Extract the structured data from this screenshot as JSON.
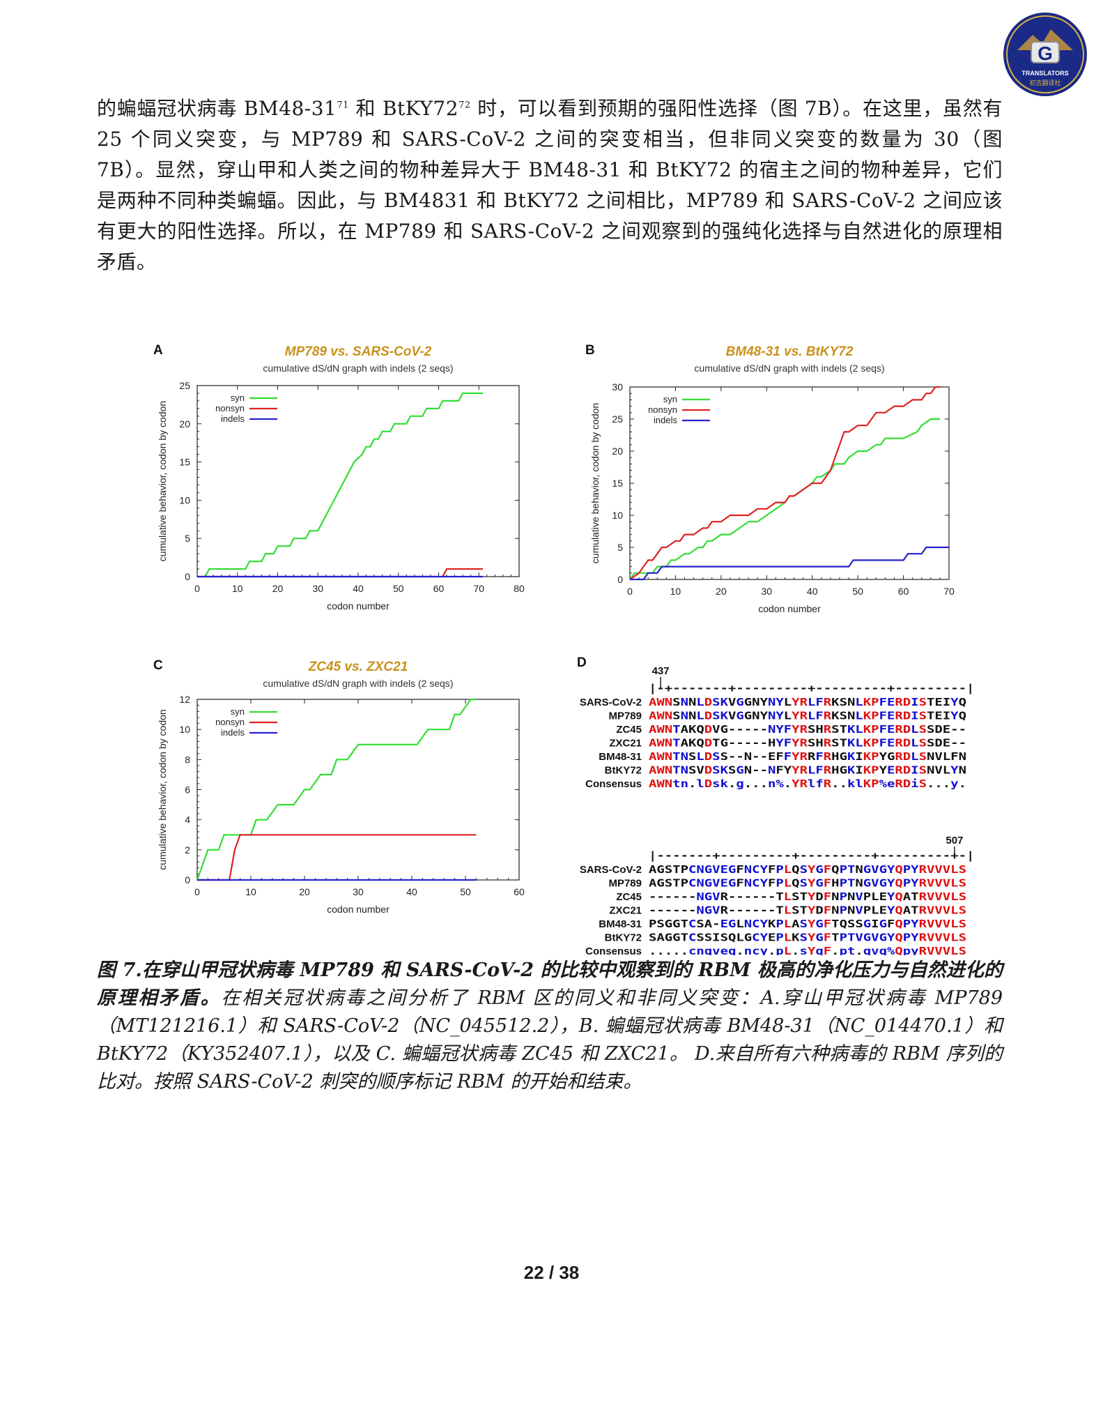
{
  "logo": {
    "letter": "G",
    "text": "TRANSLATORS",
    "subtext": "初吉翻译社"
  },
  "paragraph": {
    "p1": "的蝙蝠冠状病毒 BM48-31",
    "sup1": "71",
    "p2": " 和 BtKY72",
    "sup2": "72",
    "p3": " 时，可以看到预期的强阳性选择（图 7B）。在这里，虽然有 25 个同义突变，与 MP789 和 SARS-CoV-2 之间的突变相当，但非同义突变的数量为 30（图 7B）。显然，穿山甲和人类之间的物种差异大于 BM48-31 和 BtKY72 的宿主之间的物种差异，它们是两种不同种类蝙蝠。因此，与 BM4831 和 BtKY72 之间相比，MP789 和 SARS-CoV-2 之间应该有更大的阳性选择。所以，在 MP789 和 SARS-CoV-2 之间观察到的强纯化选择与自然进化的原理相矛盾。"
  },
  "caption": {
    "bold": "图 7.在穿山甲冠状病毒 MP789 和 SARS-CoV-2 的比较中观察到的 RBM 极高的净化压力与自然进化的原理相矛盾。",
    "rest": "在相关冠状病毒之间分析了 RBM 区的同义和非同义突变：A.穿山甲冠状病毒 MP789（MT121216.1）和 SARS-CoV-2（NC_045512.2），B. 蝙蝠冠状病毒 BM48-31（NC_014470.1）和 BtKY72（KY352407.1），以及 C. 蝙蝠冠状病毒 ZC45 和 ZXC21。 D.来自所有六种病毒的 RBM 序列的比对。按照 SARS-CoV-2 刺突的顺序标记 RBM 的开始和结束。"
  },
  "page_number": "22 / 38",
  "colors": {
    "syn": "#33dd33",
    "nonsyn": "#dd2222",
    "indels": "#2222cc",
    "title": "#c8921c",
    "aln_red": "#e01010",
    "aln_blue": "#1010d0"
  },
  "chart_data": [
    {
      "panel": "A",
      "type": "line",
      "title": "MP789 vs. SARS-CoV-2",
      "subtitle": "cumulative dS/dN graph with indels (2 seqs)",
      "xlabel": "codon number",
      "ylabel": "cumulative behavior, codon by codon",
      "xlim": [
        0,
        80
      ],
      "ylim": [
        0,
        25
      ],
      "xticks": [
        0,
        10,
        20,
        30,
        40,
        50,
        60,
        70,
        80
      ],
      "yticks": [
        0,
        5,
        10,
        15,
        20,
        25
      ],
      "legend": "top-left",
      "series": [
        {
          "name": "syn",
          "color": "#33dd33",
          "x": [
            2,
            3,
            4,
            12,
            13,
            16,
            17,
            19,
            20,
            23,
            24,
            27,
            28,
            30,
            31,
            32,
            33,
            34,
            35,
            36,
            37,
            38,
            39,
            41,
            42,
            43,
            44,
            45,
            46,
            47,
            48,
            49,
            51,
            52,
            53,
            54,
            56,
            57,
            59,
            60,
            61,
            62,
            63,
            65,
            66,
            70,
            71
          ],
          "y": [
            0,
            1,
            1,
            1,
            2,
            2,
            3,
            3,
            4,
            4,
            5,
            5,
            6,
            6,
            7,
            8,
            9,
            10,
            11,
            12,
            13,
            14,
            15,
            16,
            17,
            17,
            18,
            18,
            19,
            19,
            19,
            20,
            20,
            20,
            21,
            21,
            21,
            22,
            22,
            22,
            23,
            23,
            23,
            23,
            24,
            24,
            24
          ]
        },
        {
          "name": "nonsyn",
          "color": "#dd2222",
          "x": [
            0,
            61,
            62,
            71
          ],
          "y": [
            0,
            0,
            1,
            1
          ]
        },
        {
          "name": "indels",
          "color": "#2222cc",
          "x": [
            0,
            71
          ],
          "y": [
            0,
            0
          ]
        }
      ]
    },
    {
      "panel": "B",
      "type": "line",
      "title": "BM48-31 vs. BtKY72",
      "subtitle": "cumulative dS/dN graph with indels (2 seqs)",
      "xlabel": "codon number",
      "ylabel": "cumulative behavior, codon by codon",
      "xlim": [
        0,
        70
      ],
      "ylim": [
        0,
        30
      ],
      "xticks": [
        0,
        10,
        20,
        30,
        40,
        50,
        60,
        70
      ],
      "yticks": [
        0,
        5,
        10,
        15,
        20,
        25,
        30
      ],
      "legend": "top-left",
      "series": [
        {
          "name": "syn",
          "color": "#33dd33",
          "x": [
            0,
            1,
            2,
            5,
            6,
            8,
            9,
            10,
            12,
            13,
            15,
            16,
            17,
            18,
            20,
            22,
            24,
            26,
            28,
            30,
            32,
            34,
            35,
            36,
            38,
            40,
            41,
            42,
            44,
            45,
            47,
            48,
            50,
            52,
            54,
            55,
            56,
            58,
            60,
            63,
            64,
            66,
            67,
            68
          ],
          "y": [
            0,
            1,
            1,
            1,
            2,
            2,
            3,
            3,
            4,
            4,
            5,
            5,
            6,
            6,
            7,
            7,
            8,
            9,
            9,
            10,
            11,
            12,
            13,
            13,
            14,
            15,
            16,
            16,
            17,
            18,
            18,
            19,
            20,
            20,
            21,
            21,
            22,
            22,
            22,
            23,
            24,
            25,
            25,
            25
          ]
        },
        {
          "name": "nonsyn",
          "color": "#dd2222",
          "x": [
            0,
            2,
            3,
            4,
            5,
            6,
            7,
            8,
            10,
            11,
            12,
            14,
            16,
            17,
            18,
            20,
            22,
            24,
            26,
            28,
            30,
            32,
            34,
            35,
            36,
            38,
            40,
            42,
            44,
            45,
            46,
            47,
            48,
            50,
            52,
            54,
            55,
            56,
            58,
            60,
            62,
            64,
            65,
            66,
            67,
            68
          ],
          "y": [
            0,
            1,
            2,
            3,
            3,
            4,
            5,
            5,
            6,
            6,
            7,
            7,
            8,
            8,
            9,
            9,
            10,
            10,
            10,
            11,
            11,
            12,
            12,
            13,
            13,
            14,
            15,
            15,
            17,
            19,
            21,
            23,
            23,
            24,
            24,
            26,
            26,
            26,
            27,
            27,
            28,
            28,
            29,
            29,
            30,
            30
          ]
        },
        {
          "name": "indels",
          "color": "#2222cc",
          "x": [
            0,
            3,
            4,
            5,
            6,
            7,
            8,
            9,
            48,
            49,
            60,
            61,
            64,
            65,
            70
          ],
          "y": [
            0,
            0,
            1,
            1,
            1,
            2,
            2,
            2,
            2,
            3,
            3,
            4,
            4,
            5,
            5
          ]
        }
      ]
    },
    {
      "panel": "C",
      "type": "line",
      "title": "ZC45 vs. ZXC21",
      "subtitle": "cumulative dS/dN graph with indels (2 seqs)",
      "xlabel": "codon number",
      "ylabel": "cumulative behavior, codon by codon",
      "xlim": [
        0,
        60
      ],
      "ylim": [
        0,
        12
      ],
      "xticks": [
        0,
        10,
        20,
        30,
        40,
        50,
        60
      ],
      "yticks": [
        0,
        2,
        4,
        6,
        8,
        10,
        12
      ],
      "legend": "top-left",
      "series": [
        {
          "name": "syn",
          "color": "#33dd33",
          "x": [
            0,
            1,
            2,
            4,
            5,
            6,
            8,
            10,
            11,
            13,
            15,
            16,
            18,
            20,
            21,
            23,
            25,
            26,
            28,
            30,
            35,
            37,
            41,
            43,
            45,
            47,
            48,
            49,
            51,
            52
          ],
          "y": [
            0,
            1,
            2,
            2,
            3,
            3,
            3,
            3,
            4,
            4,
            5,
            5,
            5,
            6,
            6,
            7,
            7,
            8,
            8,
            9,
            9,
            9,
            9,
            10,
            10,
            10,
            11,
            11,
            12,
            12
          ]
        },
        {
          "name": "nonsyn",
          "color": "#dd2222",
          "x": [
            0,
            6,
            7,
            8,
            9,
            52
          ],
          "y": [
            0,
            0,
            2,
            3,
            3,
            3
          ]
        },
        {
          "name": "indels",
          "color": "#2222cc",
          "x": [
            0,
            52
          ],
          "y": [
            0,
            0
          ]
        }
      ]
    }
  ],
  "alignment": {
    "panel": "D",
    "block1": {
      "marker": "437",
      "ruler": "|-+-------+---------+---------+---------|",
      "rows": [
        {
          "name": "SARS-CoV-2",
          "seq": "AWNSNNLDSKVGGNYNYLYRLFRKSNLKPFERDISTEIYQ"
        },
        {
          "name": "MP789",
          "seq": "AWNSNNLDSKVGGNYNYLYRLFRKSNLKPFERDISTEIYQ"
        },
        {
          "name": "ZC45",
          "seq": "AWNTAKQDVG-----NYFYRSHRSTKLKPFERDLSSDE--"
        },
        {
          "name": "ZXC21",
          "seq": "AWNTAKQDTG-----HYFYRSHRSTKLKPFERDLSSDE--"
        },
        {
          "name": "BM48-31",
          "seq": "AWNTNSLDSS--N--EFFYRRFRHGKIKPYGRDLSNVLFN"
        },
        {
          "name": "BtKY72",
          "seq": "AWNTNSVDSKSGN--NFYYRLFRHGKIKPYERDISNVLYN"
        },
        {
          "name": "Consensus",
          "seq": "AWNtn.lDsk.g...n%.YRlfR..klKP%eRDiS...y."
        }
      ]
    },
    "block2": {
      "marker": "507",
      "ruler": "|-------+---------+---------+---------+-|",
      "rows": [
        {
          "name": "SARS-CoV-2",
          "seq": "AGSTPCNGVEGFNCYFPLQSYGFQPTNGVGYQPYRVVVLS"
        },
        {
          "name": "MP789",
          "seq": "AGSTPCNGVEGFNCYFPLQSYGFHPTNGVGYQPYRVVVLS"
        },
        {
          "name": "ZC45",
          "seq": "------NGVR------TLSTYDFNPNVPLEYQATRVVVLS"
        },
        {
          "name": "ZXC21",
          "seq": "------NGVR------TLSTYDFNPNVPLEYQATRVVVLS"
        },
        {
          "name": "BM48-31",
          "seq": "PSGGTCSA-EGLNCYKPLASYGFTQSSGIGFQPYRVVVLS"
        },
        {
          "name": "BtKY72",
          "seq": "SAGGTCSSISQLGCYEPLKSYGFTPTVGVGYQPYRVVVLS"
        },
        {
          "name": "Consensus",
          "seq": ".....cngveg.ncy.pL.sYgF.pt.gvg%QpyRVVVLS"
        }
      ]
    }
  }
}
